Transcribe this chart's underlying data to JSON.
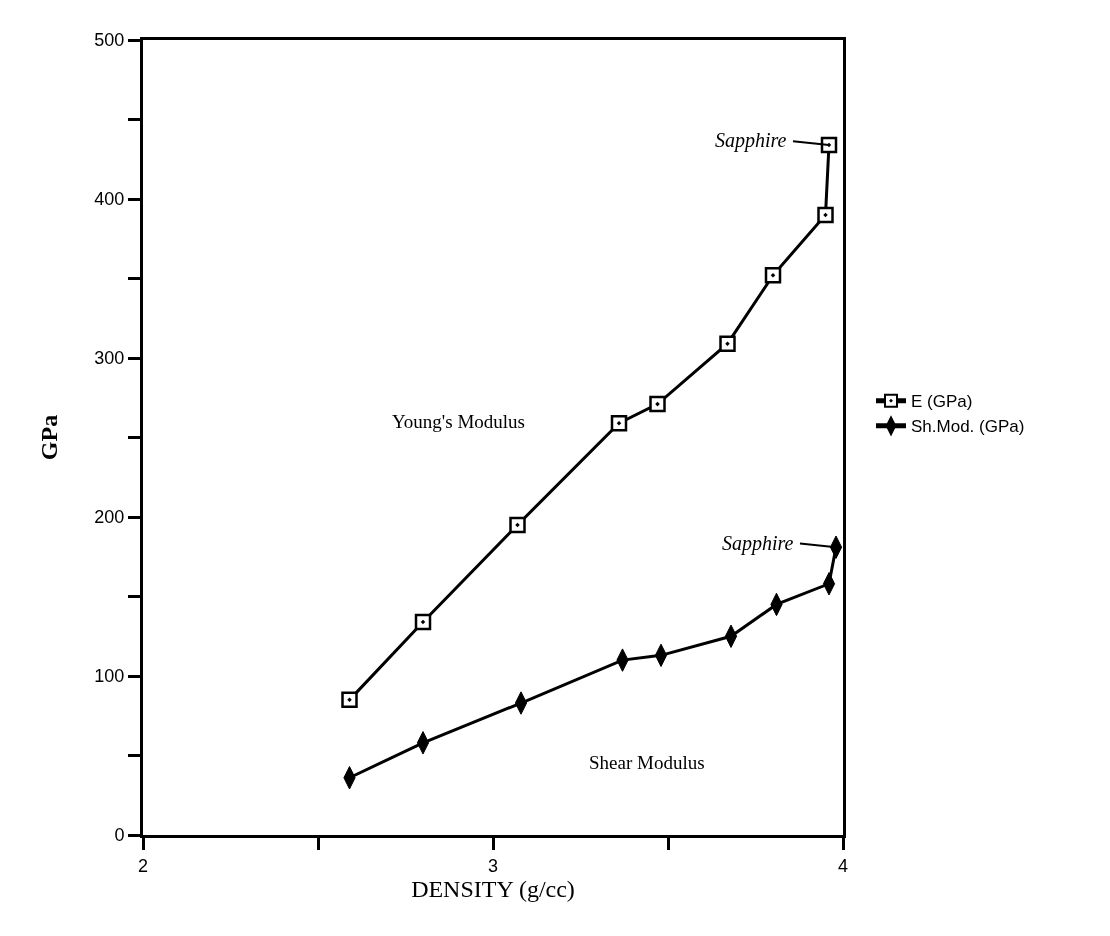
{
  "chart_data": {
    "type": "line",
    "xlabel": "DENSITY (g/cc)",
    "ylabel": "GPa",
    "xlim": [
      2,
      4
    ],
    "xticks": [
      2,
      {
        "value": 2.5,
        "label": null
      },
      3,
      {
        "value": 3.5,
        "label": null
      },
      4
    ],
    "ylim": [
      0,
      500
    ],
    "yticks": [
      0,
      {
        "value": 50,
        "label": null
      },
      100,
      {
        "value": 150,
        "label": null
      },
      200,
      {
        "value": 250,
        "label": null
      },
      300,
      {
        "value": 350,
        "label": null
      },
      400,
      {
        "value": 450,
        "label": null
      },
      500
    ],
    "grid": false,
    "legend": "right",
    "line_style": "solid",
    "series": [
      {
        "name": "E (GPa)",
        "color": "#000000",
        "marker": "square",
        "x": [
          2.59,
          2.8,
          3.07,
          3.36,
          3.47,
          3.67,
          3.8,
          3.95,
          3.96
        ],
        "values": [
          85,
          134,
          195,
          259,
          271,
          309,
          352,
          390,
          434
        ]
      },
      {
        "name": "Sh.Mod. (GPa)",
        "color": "#000000",
        "marker": "diamond",
        "x": [
          2.59,
          2.8,
          3.08,
          3.37,
          3.48,
          3.68,
          3.81,
          3.96,
          3.98
        ],
        "values": [
          36,
          58,
          83,
          110,
          113,
          125,
          145,
          158,
          181
        ]
      }
    ],
    "annotations": [
      {
        "text": "Sapphire",
        "x": 3.96,
        "y": 434
      },
      {
        "text": "Sapphire",
        "x": 3.98,
        "y": 181
      },
      "Young's Modulus",
      "Shear Modulus"
    ]
  }
}
